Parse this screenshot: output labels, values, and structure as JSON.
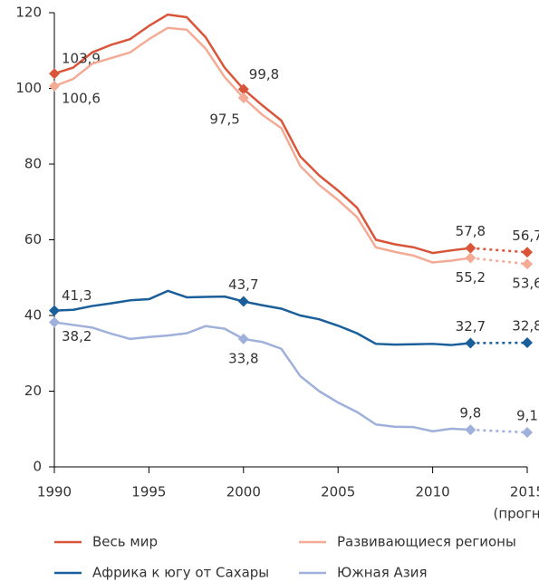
{
  "chart_data": {
    "type": "line",
    "x": [
      1990,
      1991,
      1992,
      1993,
      1994,
      1995,
      1996,
      1997,
      1998,
      1999,
      2000,
      2001,
      2002,
      2003,
      2004,
      2005,
      2006,
      2007,
      2008,
      2009,
      2010,
      2011,
      2012,
      2015
    ],
    "xlim": [
      1990,
      2015
    ],
    "xticks": [
      1990,
      1995,
      2000,
      2005,
      2010,
      2015
    ],
    "ylim": [
      0,
      120
    ],
    "yticks": [
      0,
      20,
      40,
      60,
      80,
      100,
      120
    ],
    "annotation": "(прогноз)",
    "series": [
      {
        "name": "Весь мир",
        "color": "#d9553a",
        "values": [
          103.9,
          105.5,
          109.5,
          111.5,
          113,
          116.5,
          119.5,
          118.8,
          113.5,
          105.5,
          99.8,
          95.5,
          91.5,
          82,
          77,
          73,
          68.5,
          60,
          58.8,
          58,
          56.5,
          57.2,
          57.8,
          56.7
        ],
        "value_labels": [
          "103,9",
          null,
          null,
          null,
          null,
          null,
          null,
          null,
          null,
          null,
          "99,8",
          null,
          null,
          null,
          null,
          null,
          null,
          null,
          null,
          null,
          null,
          null,
          "57,8",
          "56,7"
        ]
      },
      {
        "name": "Развивающиеся регионы",
        "color": "#f4ab96",
        "values": [
          100.6,
          102.5,
          106.5,
          108,
          109.5,
          113,
          116,
          115.5,
          110.5,
          103,
          97.5,
          93,
          89.5,
          79.5,
          74.5,
          70.5,
          66,
          58,
          56.8,
          55.8,
          54,
          54.5,
          55.2,
          53.6
        ],
        "value_labels": [
          "100,6",
          null,
          null,
          null,
          null,
          null,
          null,
          null,
          null,
          null,
          "97,5",
          null,
          null,
          null,
          null,
          null,
          null,
          null,
          null,
          null,
          null,
          null,
          "55,2",
          "53,6"
        ]
      },
      {
        "name": "Африка к югу от Сахары",
        "color": "#1a5e9a",
        "values": [
          41.3,
          41.5,
          42.5,
          43.2,
          44,
          44.3,
          46.5,
          44.8,
          44.9,
          45,
          43.7,
          42.7,
          41.8,
          40,
          39,
          37.3,
          35.3,
          32.5,
          32.3,
          32.4,
          32.5,
          32.2,
          32.7,
          32.8
        ],
        "value_labels": [
          "41,3",
          null,
          null,
          null,
          null,
          null,
          null,
          null,
          null,
          null,
          "43,7",
          null,
          null,
          null,
          null,
          null,
          null,
          null,
          null,
          null,
          null,
          null,
          "32,7",
          "32,8"
        ]
      },
      {
        "name": "Южная Азия",
        "color": "#9fb0db",
        "values": [
          38.2,
          37.5,
          36.8,
          35.2,
          33.8,
          34.3,
          34.7,
          35.3,
          37.2,
          36.5,
          33.8,
          33,
          31.2,
          24,
          20,
          17,
          14.5,
          11.2,
          10.6,
          10.5,
          9.4,
          10.1,
          9.8,
          9.1
        ],
        "value_labels": [
          "38,2",
          null,
          null,
          null,
          null,
          null,
          null,
          null,
          null,
          null,
          "33,8",
          null,
          null,
          null,
          null,
          null,
          null,
          null,
          null,
          null,
          null,
          null,
          "9,8",
          "9,1"
        ]
      }
    ]
  }
}
